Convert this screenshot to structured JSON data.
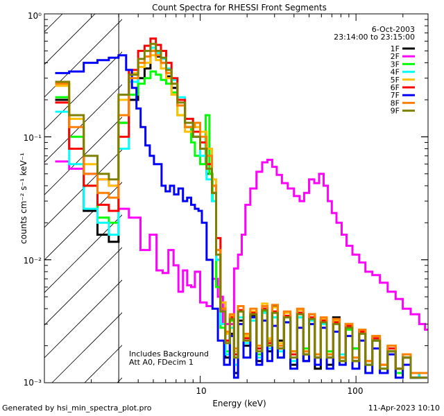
{
  "chart_data": {
    "type": "line",
    "title": "Count Spectra for RHESSI Front Segments",
    "xlabel": "Energy (keV)",
    "ylabel": "counts cm⁻² s⁻¹ keV⁻¹",
    "xscale": "log",
    "yscale": "log",
    "xlim": [
      1.0,
      290.0
    ],
    "ylim": [
      0.001,
      1.0
    ],
    "x_tick_labels": [
      "10",
      "100"
    ],
    "y_tick_labels": [
      "10⁰",
      "10⁻¹",
      "10⁻²",
      "10⁻³"
    ],
    "date": "6-Oct-2003",
    "time_range": "23:14:00 to 23:15:00",
    "annotations": [
      "Includes Background",
      "Att A0, FDecim 1"
    ],
    "shaded_region_below_keV": 3.0,
    "series": [
      {
        "name": "1F",
        "color": "#000000",
        "x": [
          1.3,
          1.6,
          2.0,
          2.4,
          2.8,
          3.2,
          3.8,
          4.2,
          4.6,
          5.0,
          5.4,
          5.8,
          6.3,
          6.8,
          7.5,
          8.5,
          9.5,
          10.5,
          11.5,
          12.3,
          13,
          14,
          15,
          16,
          17,
          18,
          20,
          22,
          24,
          26,
          28,
          30,
          33,
          36,
          40,
          44,
          48,
          52,
          57,
          62,
          68,
          75,
          82,
          90,
          100,
          110,
          120,
          135,
          150,
          170,
          190,
          210,
          240,
          270
        ],
        "y": [
          0.2,
          0.08,
          0.025,
          0.016,
          0.014,
          0.13,
          0.2,
          0.3,
          0.36,
          0.5,
          0.45,
          0.4,
          0.31,
          0.25,
          0.2,
          0.12,
          0.1,
          0.08,
          0.05,
          0.035,
          0.01,
          0.0045,
          0.0016,
          0.0025,
          0.0012,
          0.0032,
          0.002,
          0.0035,
          0.0015,
          0.004,
          0.0018,
          0.0042,
          0.0022,
          0.0035,
          0.0014,
          0.0037,
          0.0015,
          0.0036,
          0.0013,
          0.0032,
          0.0014,
          0.0034,
          0.0016,
          0.003,
          0.0019,
          0.0027,
          0.0014,
          0.0022,
          0.0012,
          0.0018,
          0.0013,
          0.0016,
          0.0011,
          0.0012
        ]
      },
      {
        "name": "2F",
        "color": "#ff00ff",
        "x": [
          1.3,
          1.6,
          2.0,
          2.4,
          2.8,
          3.2,
          3.8,
          4.5,
          5.0,
          5.5,
          6.0,
          6.5,
          7.0,
          7.5,
          8.0,
          8.5,
          9.0,
          9.5,
          10.5,
          11.5,
          12.5,
          13.5,
          14.5,
          16,
          17,
          18,
          19,
          20,
          22,
          24,
          26,
          28,
          30,
          32,
          35,
          38,
          42,
          45,
          48,
          52,
          56,
          60,
          64,
          68,
          72,
          78,
          84,
          90,
          100,
          110,
          120,
          135,
          150,
          170,
          190,
          210,
          240,
          270,
          285
        ],
        "y": [
          0.063,
          0.055,
          0.05,
          0.045,
          0.04,
          0.026,
          0.022,
          0.012,
          0.016,
          0.0082,
          0.0078,
          0.012,
          0.009,
          0.0055,
          0.0082,
          0.0062,
          0.006,
          0.008,
          0.0045,
          0.0042,
          0.007,
          0.005,
          0.003,
          0.003,
          0.0085,
          0.011,
          0.016,
          0.028,
          0.038,
          0.052,
          0.062,
          0.065,
          0.057,
          0.049,
          0.042,
          0.038,
          0.033,
          0.03,
          0.035,
          0.045,
          0.042,
          0.05,
          0.04,
          0.03,
          0.024,
          0.02,
          0.016,
          0.013,
          0.011,
          0.0095,
          0.008,
          0.0075,
          0.0065,
          0.0055,
          0.0048,
          0.004,
          0.0036,
          0.003,
          0.0027
        ]
      },
      {
        "name": "3F",
        "color": "#00ff00",
        "x": [
          1.3,
          1.6,
          2.0,
          2.4,
          2.8,
          3.2,
          3.8,
          4.2,
          4.6,
          5.0,
          5.4,
          5.8,
          6.3,
          6.8,
          7.5,
          8.5,
          9.0,
          9.5,
          10.5,
          11.2,
          11.7,
          12.3,
          13,
          14,
          15,
          16,
          17,
          18,
          20,
          22,
          24,
          26,
          28,
          30,
          33,
          36,
          40,
          44,
          48,
          52,
          57,
          62,
          68,
          75,
          82,
          90,
          100,
          110,
          120,
          135,
          150,
          170,
          190,
          210,
          240,
          270
        ],
        "y": [
          0.21,
          0.1,
          0.04,
          0.022,
          0.02,
          0.13,
          0.22,
          0.27,
          0.3,
          0.34,
          0.32,
          0.29,
          0.27,
          0.23,
          0.15,
          0.12,
          0.09,
          0.07,
          0.06,
          0.15,
          0.05,
          0.03,
          0.006,
          0.0028,
          0.0018,
          0.0032,
          0.0016,
          0.0038,
          0.0024,
          0.0034,
          0.0017,
          0.0038,
          0.0022,
          0.0034,
          0.0016,
          0.0031,
          0.0018,
          0.0034,
          0.0019,
          0.003,
          0.0016,
          0.0033,
          0.0018,
          0.0031,
          0.0015,
          0.0027,
          0.0019,
          0.0026,
          0.0014,
          0.0022,
          0.0013,
          0.0018,
          0.0012,
          0.0016,
          0.0011,
          0.0012
        ]
      },
      {
        "name": "4F",
        "color": "#00ffff",
        "x": [
          1.3,
          1.6,
          2.0,
          2.4,
          2.8,
          3.2,
          3.8,
          4.2,
          4.6,
          5.0,
          5.4,
          5.8,
          6.3,
          6.8,
          7.5,
          8.5,
          9.5,
          10.5,
          11.5,
          12.3,
          13,
          14,
          15,
          16,
          17,
          18,
          20,
          22,
          24,
          26,
          28,
          30,
          33,
          36,
          40,
          44,
          48,
          52,
          57,
          62,
          68,
          75,
          82,
          90,
          100,
          110,
          120,
          135,
          150,
          170,
          190,
          210,
          240,
          270
        ],
        "y": [
          0.16,
          0.06,
          0.026,
          0.02,
          0.016,
          0.08,
          0.28,
          0.4,
          0.45,
          0.53,
          0.48,
          0.43,
          0.36,
          0.29,
          0.21,
          0.14,
          0.1,
          0.07,
          0.045,
          0.03,
          0.01,
          0.003,
          0.0017,
          0.0028,
          0.0014,
          0.0034,
          0.0021,
          0.0032,
          0.0016,
          0.0037,
          0.0019,
          0.0034,
          0.0018,
          0.0031,
          0.0015,
          0.0034,
          0.0017,
          0.0032,
          0.0016,
          0.003,
          0.0016,
          0.0031,
          0.0017,
          0.0028,
          0.0015,
          0.0026,
          0.0014,
          0.0023,
          0.0013,
          0.0019,
          0.0013,
          0.0016,
          0.0012,
          0.0011
        ]
      },
      {
        "name": "5F",
        "color": "#ffbf00",
        "x": [
          1.3,
          1.6,
          2.0,
          2.4,
          2.8,
          3.2,
          3.8,
          4.2,
          4.6,
          5.0,
          5.4,
          5.8,
          6.3,
          6.8,
          7.5,
          8.5,
          9.5,
          10.5,
          11.5,
          12.3,
          13,
          14,
          15,
          16,
          17,
          18,
          20,
          22,
          24,
          26,
          28,
          30,
          33,
          36,
          40,
          44,
          48,
          52,
          57,
          62,
          68,
          75,
          82,
          90,
          100,
          110,
          120,
          135,
          150,
          170,
          190,
          210,
          240,
          270
        ],
        "y": [
          0.26,
          0.14,
          0.06,
          0.045,
          0.04,
          0.2,
          0.33,
          0.37,
          0.4,
          0.46,
          0.42,
          0.36,
          0.3,
          0.22,
          0.15,
          0.11,
          0.12,
          0.11,
          0.08,
          0.045,
          0.012,
          0.0045,
          0.0025,
          0.0035,
          0.0018,
          0.0042,
          0.0024,
          0.0038,
          0.002,
          0.0044,
          0.0023,
          0.0041,
          0.0021,
          0.0037,
          0.0018,
          0.0039,
          0.0018,
          0.0036,
          0.0017,
          0.0033,
          0.0017,
          0.0032,
          0.0016,
          0.003,
          0.0016,
          0.0027,
          0.0015,
          0.0024,
          0.0014,
          0.002,
          0.0013,
          0.0017,
          0.0012,
          0.0012
        ]
      },
      {
        "name": "6F",
        "color": "#ff0000",
        "x": [
          1.3,
          1.6,
          2.0,
          2.4,
          2.8,
          3.2,
          3.8,
          4.2,
          4.6,
          5.0,
          5.4,
          5.8,
          6.3,
          6.8,
          7.5,
          8.5,
          9.5,
          10.5,
          11.5,
          12.3,
          13,
          14,
          15,
          16,
          17,
          18,
          20,
          22,
          24,
          26,
          28,
          30,
          33,
          36,
          40,
          44,
          48,
          52,
          57,
          62,
          68,
          75,
          82,
          90,
          100,
          110,
          120,
          135,
          150,
          170,
          190,
          210,
          240,
          270
        ],
        "y": [
          0.19,
          0.08,
          0.04,
          0.028,
          0.025,
          0.1,
          0.35,
          0.5,
          0.55,
          0.63,
          0.56,
          0.5,
          0.4,
          0.3,
          0.2,
          0.14,
          0.11,
          0.09,
          0.06,
          0.04,
          0.015,
          0.004,
          0.0022,
          0.0034,
          0.0017,
          0.0039,
          0.0023,
          0.0037,
          0.0019,
          0.004,
          0.0021,
          0.0038,
          0.0019,
          0.0035,
          0.0017,
          0.0037,
          0.0017,
          0.0034,
          0.0016,
          0.0032,
          0.0016,
          0.0031,
          0.0016,
          0.0029,
          0.0015,
          0.0026,
          0.0015,
          0.0023,
          0.0014,
          0.0019,
          0.0013,
          0.0016,
          0.0012,
          0.0012
        ]
      },
      {
        "name": "7F",
        "color": "#0000ff",
        "x": [
          1.3,
          1.6,
          2.0,
          2.4,
          2.8,
          3.2,
          3.5,
          3.8,
          4.0,
          4.3,
          4.6,
          4.9,
          5.2,
          5.5,
          5.8,
          6.2,
          6.6,
          7.0,
          7.5,
          8.0,
          8.5,
          9.0,
          9.5,
          10,
          10.5,
          11.5,
          12.5,
          13.5,
          15,
          16,
          17,
          18,
          20,
          22,
          24,
          26,
          28,
          30,
          33,
          36,
          40,
          44,
          48,
          52,
          57,
          62,
          68,
          75,
          82,
          90,
          100,
          110,
          120,
          135,
          150,
          170,
          190,
          210,
          240,
          270
        ],
        "y": [
          0.33,
          0.34,
          0.4,
          0.42,
          0.44,
          0.46,
          0.35,
          0.25,
          0.17,
          0.12,
          0.085,
          0.07,
          0.06,
          0.06,
          0.04,
          0.036,
          0.04,
          0.034,
          0.038,
          0.03,
          0.032,
          0.028,
          0.026,
          0.025,
          0.02,
          0.01,
          0.004,
          0.0022,
          0.0014,
          0.0024,
          0.0011,
          0.003,
          0.0016,
          0.0034,
          0.0014,
          0.0032,
          0.0015,
          0.0029,
          0.0016,
          0.0031,
          0.0013,
          0.0028,
          0.0015,
          0.003,
          0.0014,
          0.0028,
          0.0013,
          0.0026,
          0.0014,
          0.0024,
          0.0013,
          0.0022,
          0.0012,
          0.0019,
          0.0012,
          0.0017,
          0.0011,
          0.0014,
          0.0011,
          0.0011
        ]
      },
      {
        "name": "8F",
        "color": "#ff8000",
        "x": [
          1.3,
          1.6,
          2.0,
          2.4,
          2.8,
          3.2,
          3.8,
          4.2,
          4.6,
          5.0,
          5.4,
          5.8,
          6.3,
          6.8,
          7.5,
          8.5,
          9.0,
          9.5,
          10.5,
          11.5,
          12.3,
          13,
          14,
          15,
          16,
          17,
          18,
          20,
          22,
          24,
          26,
          28,
          30,
          33,
          36,
          40,
          44,
          48,
          52,
          57,
          62,
          68,
          75,
          82,
          90,
          100,
          110,
          120,
          135,
          150,
          170,
          190,
          210,
          240,
          270
        ],
        "y": [
          0.27,
          0.12,
          0.05,
          0.035,
          0.032,
          0.15,
          0.3,
          0.4,
          0.45,
          0.5,
          0.46,
          0.4,
          0.33,
          0.27,
          0.18,
          0.12,
          0.12,
          0.13,
          0.1,
          0.07,
          0.04,
          0.012,
          0.004,
          0.0026,
          0.0036,
          0.0019,
          0.0042,
          0.0025,
          0.004,
          0.002,
          0.0042,
          0.0022,
          0.0043,
          0.002,
          0.0038,
          0.0018,
          0.004,
          0.0018,
          0.0036,
          0.0017,
          0.0034,
          0.0017,
          0.0033,
          0.0016,
          0.003,
          0.0016,
          0.0027,
          0.0015,
          0.0024,
          0.0014,
          0.002,
          0.0013,
          0.0017,
          0.0012,
          0.0012
        ]
      },
      {
        "name": "9F",
        "color": "#808000",
        "x": [
          1.3,
          1.6,
          2.0,
          2.4,
          2.8,
          3.2,
          3.8,
          4.2,
          4.6,
          5.0,
          5.4,
          5.8,
          6.3,
          6.8,
          7.5,
          8.5,
          9.5,
          10.5,
          11.5,
          12.3,
          13,
          14,
          15,
          16,
          17,
          18,
          20,
          22,
          24,
          26,
          28,
          30,
          33,
          36,
          40,
          44,
          48,
          52,
          57,
          62,
          68,
          75,
          82,
          90,
          100,
          110,
          120,
          135,
          150,
          170,
          190,
          210,
          240,
          270
        ],
        "y": [
          0.28,
          0.15,
          0.07,
          0.05,
          0.045,
          0.22,
          0.32,
          0.43,
          0.5,
          0.57,
          0.5,
          0.44,
          0.35,
          0.27,
          0.19,
          0.13,
          0.1,
          0.08,
          0.055,
          0.035,
          0.011,
          0.0038,
          0.0021,
          0.0033,
          0.0016,
          0.0038,
          0.0022,
          0.0036,
          0.0018,
          0.0039,
          0.002,
          0.0037,
          0.0019,
          0.0034,
          0.0016,
          0.0036,
          0.0017,
          0.0033,
          0.0016,
          0.0031,
          0.0016,
          0.003,
          0.0015,
          0.0028,
          0.0015,
          0.0025,
          0.0014,
          0.0022,
          0.0013,
          0.0018,
          0.0013,
          0.0016,
          0.0011,
          0.0011
        ]
      }
    ]
  },
  "footer": {
    "generated_by": "Generated by hsi_min_spectra_plot.pro",
    "timestamp": "11-Apr-2023 10:10"
  }
}
